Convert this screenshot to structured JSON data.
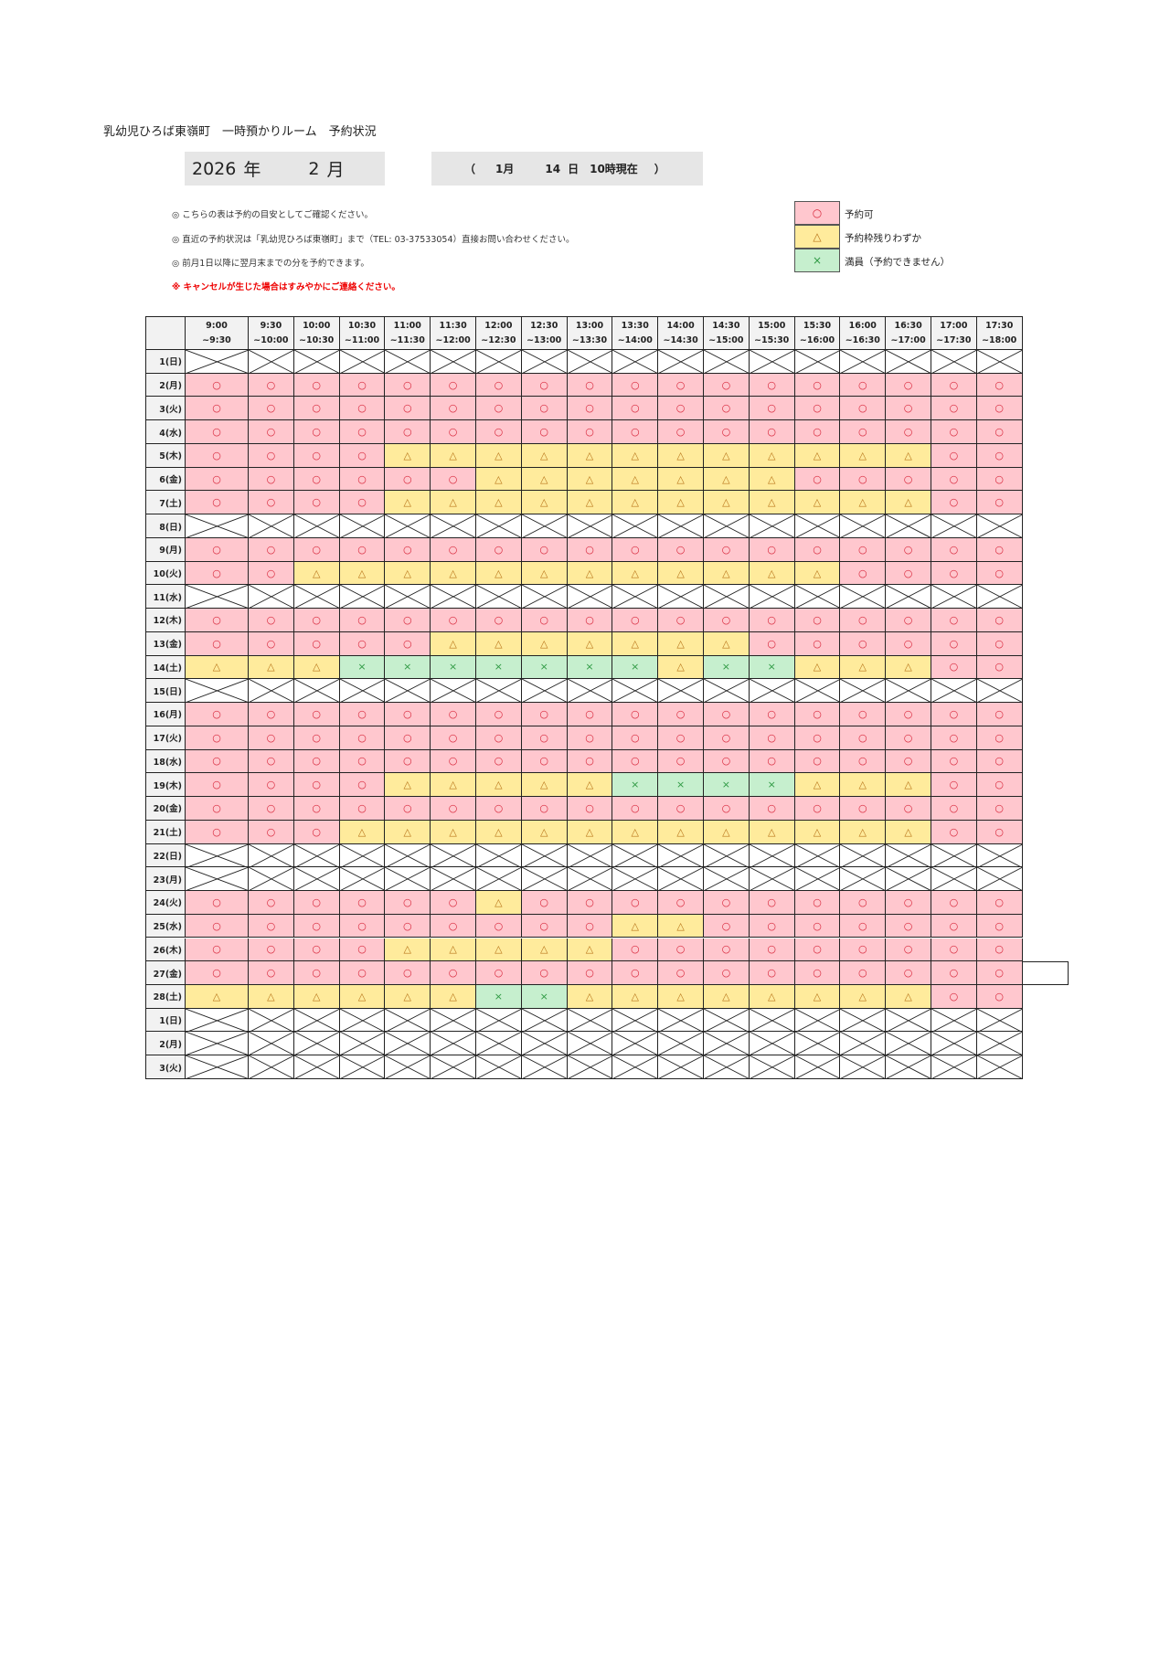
{
  "title": "乳幼児ひろば東嶺町　一時預かりルーム　予約状況",
  "year_month": {
    "year": "2026",
    "year_unit": "年",
    "month": "2",
    "month_unit": "月"
  },
  "as_of": {
    "open": "（",
    "month": "1月",
    "day": "14",
    "day_unit": "日",
    "time": "10時現在",
    "close": "）"
  },
  "notes": [
    "◎ こちらの表は予約の目安としてご確認ください。",
    "◎ 直近の予約状況は「乳幼児ひろば東嶺町」まで（TEL: 03-37533054）直接お問い合わせください。",
    "◎ 前月1日以降に翌月末までの分を予約できます。"
  ],
  "warning": "※ キャンセルが生じた場合はすみやかにご連絡ください。",
  "legend": [
    {
      "symbol": "○",
      "label": "予約可",
      "color": "#ffc7ce"
    },
    {
      "symbol": "△",
      "label": "予約枠残りわずか",
      "color": "#ffeb9c"
    },
    {
      "symbol": "×",
      "label": "満員（予約できません）",
      "color": "#c6efce"
    }
  ],
  "columns": [
    [
      "9:00",
      "~9:30"
    ],
    [
      "9:30",
      "~10:00"
    ],
    [
      "10:00",
      "~10:30"
    ],
    [
      "10:30",
      "~11:00"
    ],
    [
      "11:00",
      "~11:30"
    ],
    [
      "11:30",
      "~12:00"
    ],
    [
      "12:00",
      "~12:30"
    ],
    [
      "12:30",
      "~13:00"
    ],
    [
      "13:00",
      "~13:30"
    ],
    [
      "13:30",
      "~14:00"
    ],
    [
      "14:00",
      "~14:30"
    ],
    [
      "14:30",
      "~15:00"
    ],
    [
      "15:00",
      "~15:30"
    ],
    [
      "15:30",
      "~16:00"
    ],
    [
      "16:00",
      "~16:30"
    ],
    [
      "16:30",
      "~17:00"
    ],
    [
      "17:00",
      "~17:30"
    ],
    [
      "17:30",
      "~18:00"
    ]
  ],
  "rows": [
    {
      "day": "1(日)",
      "closed": true
    },
    {
      "day": "2(月)",
      "status": "○○○○○○○○○○○○○○○○○○"
    },
    {
      "day": "3(火)",
      "status": "○○○○○○○○○○○○○○○○○○"
    },
    {
      "day": "4(水)",
      "status": "○○○○○○○○○○○○○○○○○○"
    },
    {
      "day": "5(木)",
      "status": "○○○○△△△△△△△△△△△△○○"
    },
    {
      "day": "6(金)",
      "status": "○○○○○○△△△△△△△○○○○○"
    },
    {
      "day": "7(土)",
      "status": "○○○○△△△△△△△△△△△△○○"
    },
    {
      "day": "8(日)",
      "closed": true
    },
    {
      "day": "9(月)",
      "status": "○○○○○○○○○○○○○○○○○○"
    },
    {
      "day": "10(火)",
      "status": "○○△△△△△△△△△△△△○○○○"
    },
    {
      "day": "11(水)",
      "closed": true
    },
    {
      "day": "12(木)",
      "status": "○○○○○○○○○○○○○○○○○○"
    },
    {
      "day": "13(金)",
      "status": "○○○○○△△△△△△△○○○○○○"
    },
    {
      "day": "14(土)",
      "status": "△△△×××××××△××△△△○○"
    },
    {
      "day": "15(日)",
      "closed": true
    },
    {
      "day": "16(月)",
      "status": "○○○○○○○○○○○○○○○○○○"
    },
    {
      "day": "17(火)",
      "status": "○○○○○○○○○○○○○○○○○○"
    },
    {
      "day": "18(水)",
      "status": "○○○○○○○○○○○○○○○○○○"
    },
    {
      "day": "19(木)",
      "status": "○○○○△△△△△××××△△△○○"
    },
    {
      "day": "20(金)",
      "status": "○○○○○○○○○○○○○○○○○○"
    },
    {
      "day": "21(土)",
      "status": "○○○△△△△△△△△△△△△△○○"
    },
    {
      "day": "22(日)",
      "closed": true
    },
    {
      "day": "23(月)",
      "closed": true
    },
    {
      "day": "24(火)",
      "status": "○○○○○○△○○○○○○○○○○○"
    },
    {
      "day": "25(水)",
      "status": "○○○○○○○○○△△○○○○○○○"
    },
    {
      "day": "26(木)",
      "status": "○○○○△△△△△○○○○○○○○○"
    },
    {
      "day": "27(金)",
      "status": "○○○○○○○○○○○○○○○○○○"
    },
    {
      "day": "28(土)",
      "status": "△△△△△△××△△△△△△△△○○"
    },
    {
      "day": "1(日)",
      "closed": true
    },
    {
      "day": "2(月)",
      "closed": true
    },
    {
      "day": "3(火)",
      "closed": true
    }
  ]
}
